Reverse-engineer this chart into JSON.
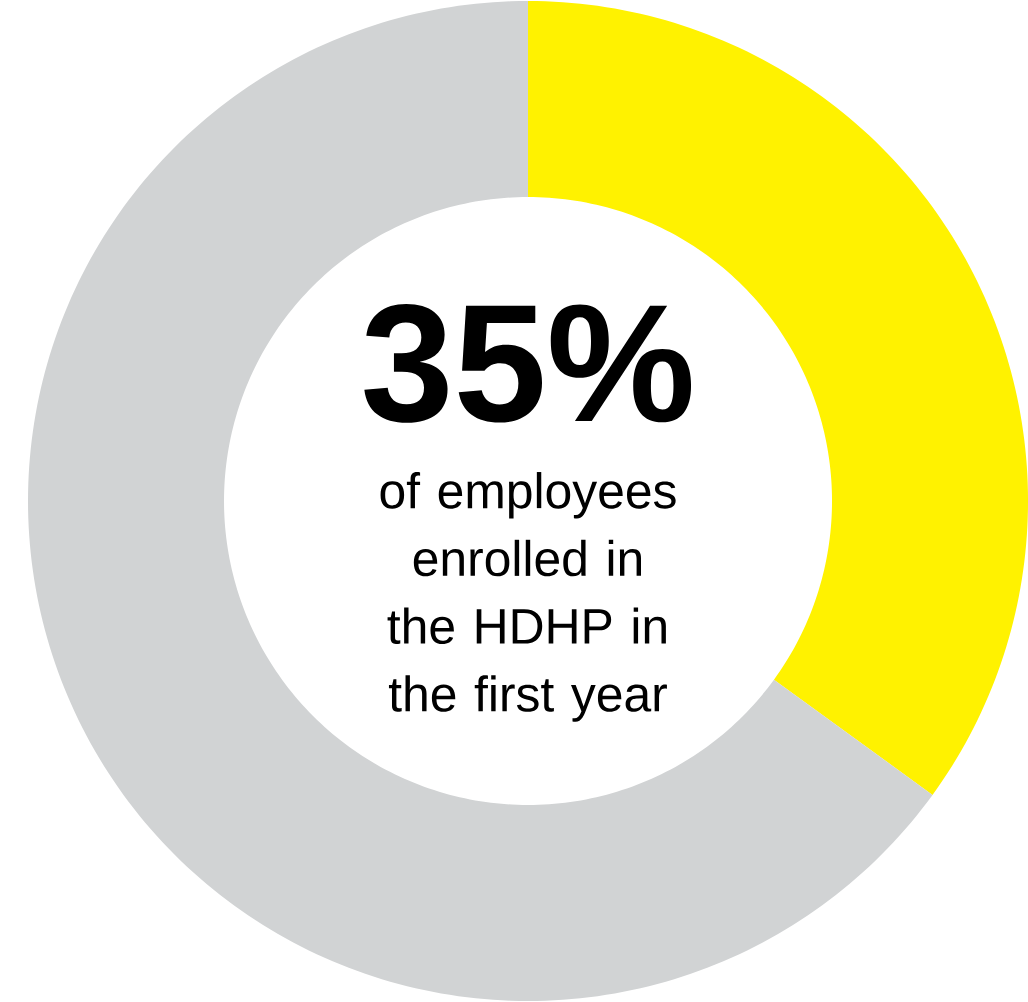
{
  "chart_data": {
    "type": "donut",
    "categories": [
      null,
      null
    ],
    "values": [
      35,
      65
    ],
    "colors": [
      "#fff200",
      "#d1d3d4"
    ],
    "value_labels": [
      "35%",
      null
    ],
    "annotations": [
      "of employees enrolled in the HDHP in the first year"
    ]
  }
}
